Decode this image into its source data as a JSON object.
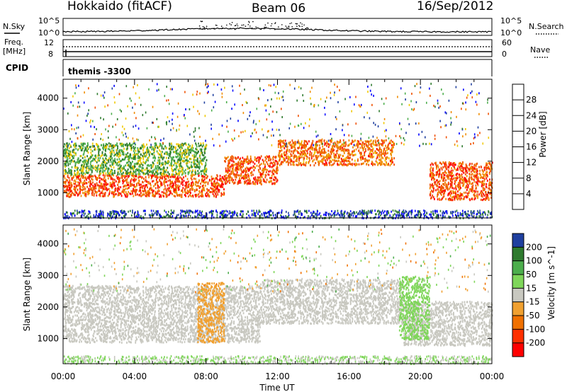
{
  "header": {
    "station": "Hokkaido (fitACF)",
    "beam": "Beam 06",
    "date": "16/Sep/2012"
  },
  "panel_labels": {
    "nsky": "N.Sky",
    "nsky_tick_top": "10^5",
    "nsky_tick_bottom": "10^0",
    "nsearch": "N.Search",
    "nsearch_tick_top": "10^5",
    "nsearch_tick_bottom": "10^0",
    "freq_line1": "Freq.",
    "freq_line2": "[MHz]",
    "freq_tick_top": "12",
    "freq_tick_bottom": "8",
    "nave": "Nave",
    "nave_tick_top": "60",
    "nave_tick_bottom": "0",
    "cpid": "CPID",
    "cpid_value": "themis -3300"
  },
  "chart_data": [
    {
      "type": "heatmap",
      "title": "",
      "ylabel": "Slant Range [km]",
      "ylim": [
        200,
        4600
      ],
      "yticks": [
        "1000",
        "2000",
        "3000",
        "4000"
      ],
      "xticks": [
        "00:00",
        "04:00",
        "08:00",
        "12:00",
        "16:00",
        "20:00",
        "00:00"
      ],
      "xlim_hours": [
        0,
        24
      ],
      "colorbar": {
        "label": "Power [dB]",
        "ticks": [
          "4",
          "8",
          "12",
          "16",
          "20",
          "24",
          "28"
        ],
        "colors": [
          "#0000ff",
          "#1f3f9f",
          "#2e7a2e",
          "#4cae4c",
          "#f0c800",
          "#f08c00",
          "#f05000",
          "#ff0000"
        ]
      },
      "bands": [
        {
          "t_start": 0,
          "t_end": 9,
          "r_start": 900,
          "r_end": 1600,
          "level": 26
        },
        {
          "t_start": 9,
          "t_end": 12,
          "r_start": 1300,
          "r_end": 2200,
          "level": 26
        },
        {
          "t_start": 12,
          "t_end": 18.5,
          "r_start": 1900,
          "r_end": 2700,
          "level": 24
        },
        {
          "t_start": 20.5,
          "t_end": 24,
          "r_start": 800,
          "r_end": 2000,
          "level": 26
        },
        {
          "t_start": 0,
          "t_end": 8,
          "r_start": 1600,
          "r_end": 2600,
          "level": 14
        }
      ]
    },
    {
      "type": "heatmap",
      "title": "",
      "ylabel": "Slant Range [km]",
      "ylim": [
        200,
        4600
      ],
      "yticks": [
        "1000",
        "2000",
        "3000",
        "4000"
      ],
      "xticks": [
        "00:00",
        "04:00",
        "08:00",
        "12:00",
        "16:00",
        "20:00",
        "00:00"
      ],
      "xlabel": "Time UT",
      "xlim_hours": [
        0,
        24
      ],
      "colorbar": {
        "label": "Velocity [m s^-1]",
        "ticks": [
          "200",
          "100",
          "50",
          "15",
          "-15",
          "-50",
          "-100",
          "-200"
        ],
        "colors": [
          "#1f3f9f",
          "#2e7a2e",
          "#4cae4c",
          "#7fd65a",
          "#c8c8c0",
          "#f0a030",
          "#f07000",
          "#ff3000",
          "#ff0000"
        ]
      },
      "bands": [
        {
          "t_start": 0,
          "t_end": 11,
          "r_start": 900,
          "r_end": 2700,
          "level": 0
        },
        {
          "t_start": 11,
          "t_end": 19,
          "r_start": 1500,
          "r_end": 2900,
          "level": 0
        },
        {
          "t_start": 19,
          "t_end": 24,
          "r_start": 800,
          "r_end": 2200,
          "level": 0
        },
        {
          "t_start": 7.5,
          "t_end": 9,
          "r_start": 900,
          "r_end": 2800,
          "level": -40
        },
        {
          "t_start": 18.8,
          "t_end": 20.5,
          "r_start": 1000,
          "r_end": 3000,
          "level": 30
        }
      ]
    }
  ]
}
